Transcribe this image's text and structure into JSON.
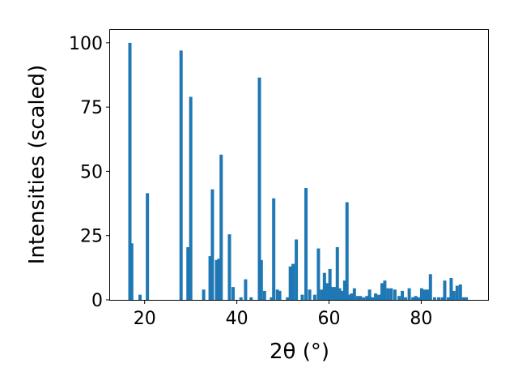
{
  "chart_data": {
    "type": "bar",
    "title": "",
    "xlabel": "2θ (°)",
    "ylabel": "Intensities (scaled)",
    "xlim": [
      12.5,
      94.5
    ],
    "ylim": [
      0,
      105
    ],
    "xticks": [
      20,
      40,
      60,
      80
    ],
    "yticks": [
      0,
      25,
      50,
      75,
      100
    ],
    "grid": false,
    "legend": "none",
    "bar_color": "#1f77b4",
    "bar_width": 0.7,
    "series": [
      {
        "x": [
          16.8,
          17.2,
          19.0,
          20.6,
          27.9,
          29.4,
          30.0,
          32.8,
          34.2,
          34.7,
          35.6,
          36.1,
          36.6,
          38.4,
          39.2,
          40.9,
          41.9,
          43.1,
          44.9,
          45.3,
          46.0,
          47.5,
          48.0,
          48.8,
          49.3,
          51.0,
          51.6,
          52.2,
          52.9,
          54.2,
          55.0,
          55.8,
          56.9,
          57.7,
          58.4,
          59.0,
          59.6,
          60.2,
          60.7,
          61.3,
          61.8,
          62.3,
          62.8,
          63.4,
          63.9,
          64.3,
          64.9,
          65.5,
          66.2,
          66.8,
          67.5,
          68.2,
          68.8,
          69.4,
          70.1,
          70.8,
          71.5,
          72.1,
          72.8,
          73.5,
          74.3,
          75.2,
          75.9,
          76.6,
          77.4,
          78.2,
          78.8,
          79.4,
          80.1,
          80.8,
          81.4,
          82.0,
          82.9,
          83.8,
          84.6,
          85.1,
          85.9,
          86.5,
          87.1,
          87.8,
          88.5,
          89.2,
          89.8
        ],
        "values": [
          100,
          22,
          2,
          41.5,
          97,
          20.5,
          79,
          4,
          17,
          43,
          15.5,
          16,
          56.5,
          25.5,
          5,
          1,
          8,
          1,
          86.5,
          15.5,
          3.5,
          1,
          39.5,
          4,
          3.5,
          1,
          13,
          14,
          23.5,
          2,
          43.5,
          4,
          2,
          20,
          4,
          10.5,
          6.5,
          12,
          5,
          5,
          20.5,
          4.5,
          3.5,
          7.5,
          38,
          2,
          2.5,
          4.5,
          1.5,
          1.5,
          1,
          1.5,
          4,
          1,
          2.5,
          2,
          6.5,
          7.5,
          4.5,
          4.5,
          4,
          1.5,
          3.5,
          1,
          4.5,
          1,
          1.5,
          1,
          4.5,
          4,
          4,
          10,
          1,
          1,
          1,
          7.5,
          1,
          8.5,
          3.5,
          5.5,
          6,
          1,
          1
        ]
      }
    ]
  }
}
